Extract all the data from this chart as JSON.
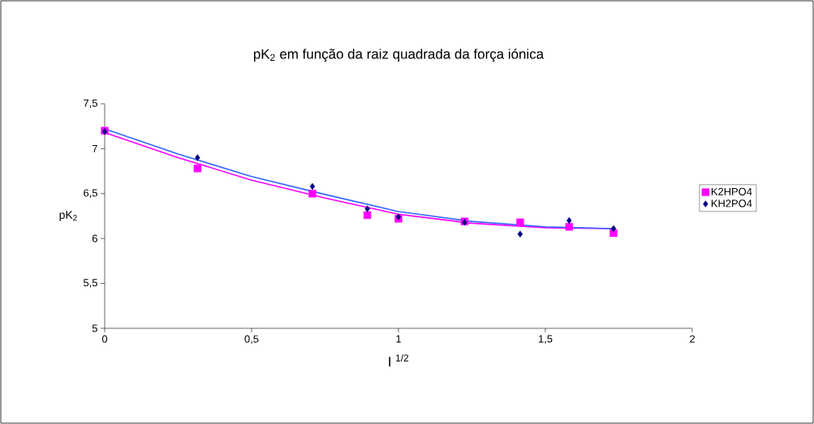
{
  "chart_data": {
    "type": "scatter",
    "title": "pK$_{2}$ em função da raiz quadrada da força iónica",
    "xlabel": "I $^{1/2}$",
    "ylabel": "pK$_{2}$",
    "x": [
      0,
      0.316,
      0.707,
      0.894,
      1,
      1.225,
      1.414,
      1.581,
      1.732
    ],
    "series": [
      {
        "name": "K2HPO4",
        "color": "#ff00ff",
        "marker": "square",
        "values": [
          7.2,
          6.78,
          6.5,
          6.26,
          6.22,
          6.19,
          6.18,
          6.13,
          6.06
        ]
      },
      {
        "name": "KH2PO4",
        "color": "#000080",
        "marker": "diamond",
        "values": [
          7.19,
          6.9,
          6.58,
          6.33,
          6.24,
          6.18,
          6.05,
          6.2,
          6.11
        ]
      },
      {
        "type": "line",
        "color": "#ff00ff",
        "x": [
          0,
          0.25,
          0.5,
          0.75,
          1,
          1.25,
          1.5,
          1.732
        ],
        "values": [
          7.18,
          6.9,
          6.65,
          6.45,
          6.27,
          6.17,
          6.12,
          6.11
        ]
      },
      {
        "type": "line",
        "color": "#3366ff",
        "x": [
          0,
          0.25,
          0.5,
          0.75,
          1,
          1.25,
          1.5,
          1.732
        ],
        "values": [
          7.22,
          6.94,
          6.69,
          6.49,
          6.3,
          6.19,
          6.13,
          6.11
        ]
      }
    ],
    "xlim": [
      0,
      2
    ],
    "ylim": [
      5,
      7.5
    ],
    "xticks": [
      0,
      {
        "value": 0.5,
        "label": "0,5"
      },
      1,
      {
        "value": 1.5,
        "label": "1,5"
      },
      2
    ],
    "yticks": [
      5,
      {
        "value": 5.5,
        "label": "5,5"
      },
      6,
      {
        "value": 6.5,
        "label": "6,5"
      },
      7,
      {
        "value": 7.5,
        "label": "7,5"
      }
    ],
    "legend": "right"
  }
}
